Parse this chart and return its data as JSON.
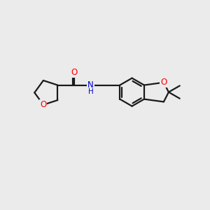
{
  "background_color": "#ebebeb",
  "bond_color": "#1a1a1a",
  "O_color": "#ff0000",
  "N_color": "#0000cd",
  "bond_width": 1.6,
  "figsize": [
    3.0,
    3.0
  ],
  "dpi": 100,
  "xlim": [
    0,
    10
  ],
  "ylim": [
    0,
    10
  ]
}
